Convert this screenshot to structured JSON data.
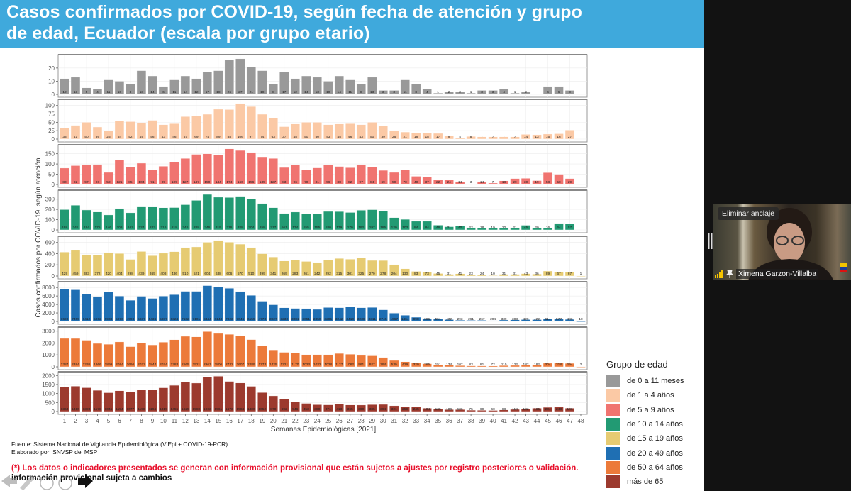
{
  "title": {
    "line1": "Casos confirmados por COVID-19, según fecha de atención y grupo",
    "line2": "de edad, Ecuador (escala por grupo etario)"
  },
  "footer": {
    "source": "Fuente: Sistema Nacional de Vigilancia Epidemiológica (ViEpi + COVID-19-PCR)",
    "author": "Elaborado por: SNVSP del MSP",
    "warning": "(*) Los datos o indicadores presentados se generan con información provisional que están sujetos a ajustes por registro posteriores o validación.",
    "warning2": "información provisional sujeta a cambios"
  },
  "video": {
    "unpin_label": "Eliminar anclaje",
    "participant_name": "Ximena Garzon-Villalba"
  },
  "chart_data": {
    "type": "bar",
    "title": "Casos confirmados por COVID-19, según fecha de atención y grupo de edad, Ecuador (escala por grupo etario)",
    "xlabel": "Semanas Epidemiológicas [2021]",
    "ylabel": "Casos confirmados por COVID-19, según atención",
    "x": [
      1,
      2,
      3,
      4,
      5,
      6,
      7,
      8,
      9,
      10,
      11,
      12,
      13,
      14,
      15,
      16,
      17,
      18,
      19,
      20,
      21,
      22,
      23,
      24,
      25,
      26,
      27,
      28,
      29,
      30,
      31,
      32,
      33,
      34,
      35,
      36,
      37,
      38,
      39,
      40,
      41,
      42,
      43,
      44,
      45,
      46,
      47,
      48
    ],
    "legend_title": "Grupo de edad",
    "legend_position": "bottom-right",
    "grid": true,
    "series": [
      {
        "name": "de 0 a 11 meses",
        "color": "#999999",
        "ylim": [
          0,
          28
        ],
        "ticks": [
          0,
          10,
          20
        ],
        "values": [
          12,
          13,
          5,
          4,
          11,
          10,
          8,
          18,
          14,
          6,
          11,
          14,
          12,
          17,
          18,
          26,
          27,
          21,
          18,
          8,
          17,
          12,
          14,
          13,
          10,
          14,
          11,
          8,
          13,
          3,
          3,
          11,
          8,
          4,
          1,
          2,
          2,
          1,
          3,
          3,
          4,
          1,
          2,
          null,
          6,
          6,
          3,
          null
        ]
      },
      {
        "name": "de 1 a 4 años",
        "color": "#fbc9a5",
        "ylim": [
          0,
          110
        ],
        "ticks": [
          0,
          25,
          50,
          75,
          100
        ],
        "values": [
          33,
          41,
          50,
          36,
          25,
          54,
          52,
          49,
          56,
          43,
          46,
          67,
          69,
          74,
          89,
          88,
          106,
          97,
          74,
          63,
          37,
          45,
          50,
          50,
          43,
          45,
          46,
          43,
          50,
          39,
          26,
          21,
          18,
          18,
          17,
          9,
          4,
          8,
          7,
          7,
          7,
          7,
          14,
          13,
          15,
          16,
          27,
          null
        ]
      },
      {
        "name": "de 5 a 9 años",
        "color": "#f07470",
        "ylim": [
          0,
          180
        ],
        "ticks": [
          0,
          50,
          100,
          150
        ],
        "values": [
          80,
          92,
          97,
          98,
          59,
          121,
          85,
          104,
          71,
          89,
          109,
          127,
          147,
          150,
          144,
          174,
          166,
          156,
          135,
          127,
          83,
          96,
          70,
          81,
          96,
          88,
          82,
          97,
          84,
          69,
          59,
          70,
          40,
          37,
          22,
          24,
          14,
          3,
          14,
          7,
          18,
          29,
          30,
          19,
          58,
          50,
          29,
          null
        ]
      },
      {
        "name": "de 10 a 14 años",
        "color": "#229a73",
        "ylim": [
          0,
          360
        ],
        "ticks": [
          0,
          100,
          200,
          300
        ],
        "values": [
          198,
          241,
          194,
          175,
          146,
          208,
          167,
          224,
          223,
          216,
          218,
          246,
          288,
          346,
          319,
          316,
          328,
          304,
          258,
          217,
          161,
          174,
          155,
          155,
          180,
          179,
          170,
          192,
          197,
          185,
          120,
          103,
          84,
          84,
          46,
          31,
          40,
          22,
          18,
          19,
          20,
          21,
          45,
          20,
          16,
          64,
          57,
          null
        ]
      },
      {
        "name": "de 15 a 19 años",
        "color": "#e6cb72",
        "ylim": [
          0,
          660
        ],
        "ticks": [
          0,
          200,
          400,
          600
        ],
        "values": [
          429,
          459,
          383,
          372,
          420,
          404,
          298,
          439,
          365,
          408,
          436,
          510,
          521,
          604,
          638,
          606,
          570,
          510,
          399,
          341,
          269,
          283,
          261,
          242,
          292,
          315,
          301,
          325,
          279,
          278,
          204,
          130,
          83,
          73,
          45,
          31,
          41,
          23,
          24,
          10,
          31,
          31,
          43,
          36,
          89,
          67,
          67,
          1
        ]
      },
      {
        "name": "de 20 a 49 años",
        "color": "#1f6fb3",
        "ylim": [
          0,
          8700
        ],
        "ticks": [
          0,
          2000,
          4000,
          6000,
          8000
        ],
        "values": [
          7690,
          7459,
          6412,
          5902,
          6938,
          5996,
          4998,
          5937,
          5436,
          5987,
          6324,
          7102,
          7101,
          8444,
          8143,
          7823,
          7046,
          6155,
          4773,
          3927,
          3230,
          3081,
          3051,
          2850,
          3285,
          3242,
          3410,
          3238,
          3311,
          2745,
          1967,
          1464,
          998,
          686,
          551,
          432,
          293,
          261,
          267,
          204,
          339,
          383,
          429,
          422,
          614,
          577,
          486,
          10
        ]
      },
      {
        "name": "de 50 a 64 años",
        "color": "#ec7a3a",
        "ylim": [
          0,
          3100
        ],
        "ticks": [
          0,
          1000,
          2000,
          3000
        ],
        "values": [
          2387,
          2384,
          2236,
          1966,
          1899,
          2094,
          1696,
          2022,
          1844,
          2074,
          2283,
          2565,
          2521,
          2961,
          2806,
          2732,
          2607,
          2289,
          1773,
          1425,
          1221,
          1170,
          1023,
          1032,
          1028,
          1127,
          1062,
          961,
          927,
          794,
          539,
          429,
          320,
          265,
          151,
          134,
          107,
          83,
          81,
          72,
          110,
          122,
          182,
          182,
          304,
          318,
          294,
          2
        ]
      },
      {
        "name": "más de 65",
        "color": "#9c3a2e",
        "ylim": [
          0,
          2050
        ],
        "ticks": [
          0,
          500,
          1000,
          1500,
          2000
        ],
        "values": [
          1363,
          1410,
          1323,
          1178,
          1045,
          1154,
          1077,
          1198,
          1194,
          1319,
          1455,
          1625,
          1580,
          1903,
          1961,
          1673,
          1584,
          1400,
          1052,
          870,
          692,
          546,
          453,
          380,
          371,
          413,
          365,
          360,
          385,
          394,
          321,
          259,
          245,
          184,
          135,
          109,
          106,
          75,
          69,
          60,
          88,
          118,
          132,
          185,
          234,
          243,
          186,
          null
        ]
      }
    ]
  }
}
